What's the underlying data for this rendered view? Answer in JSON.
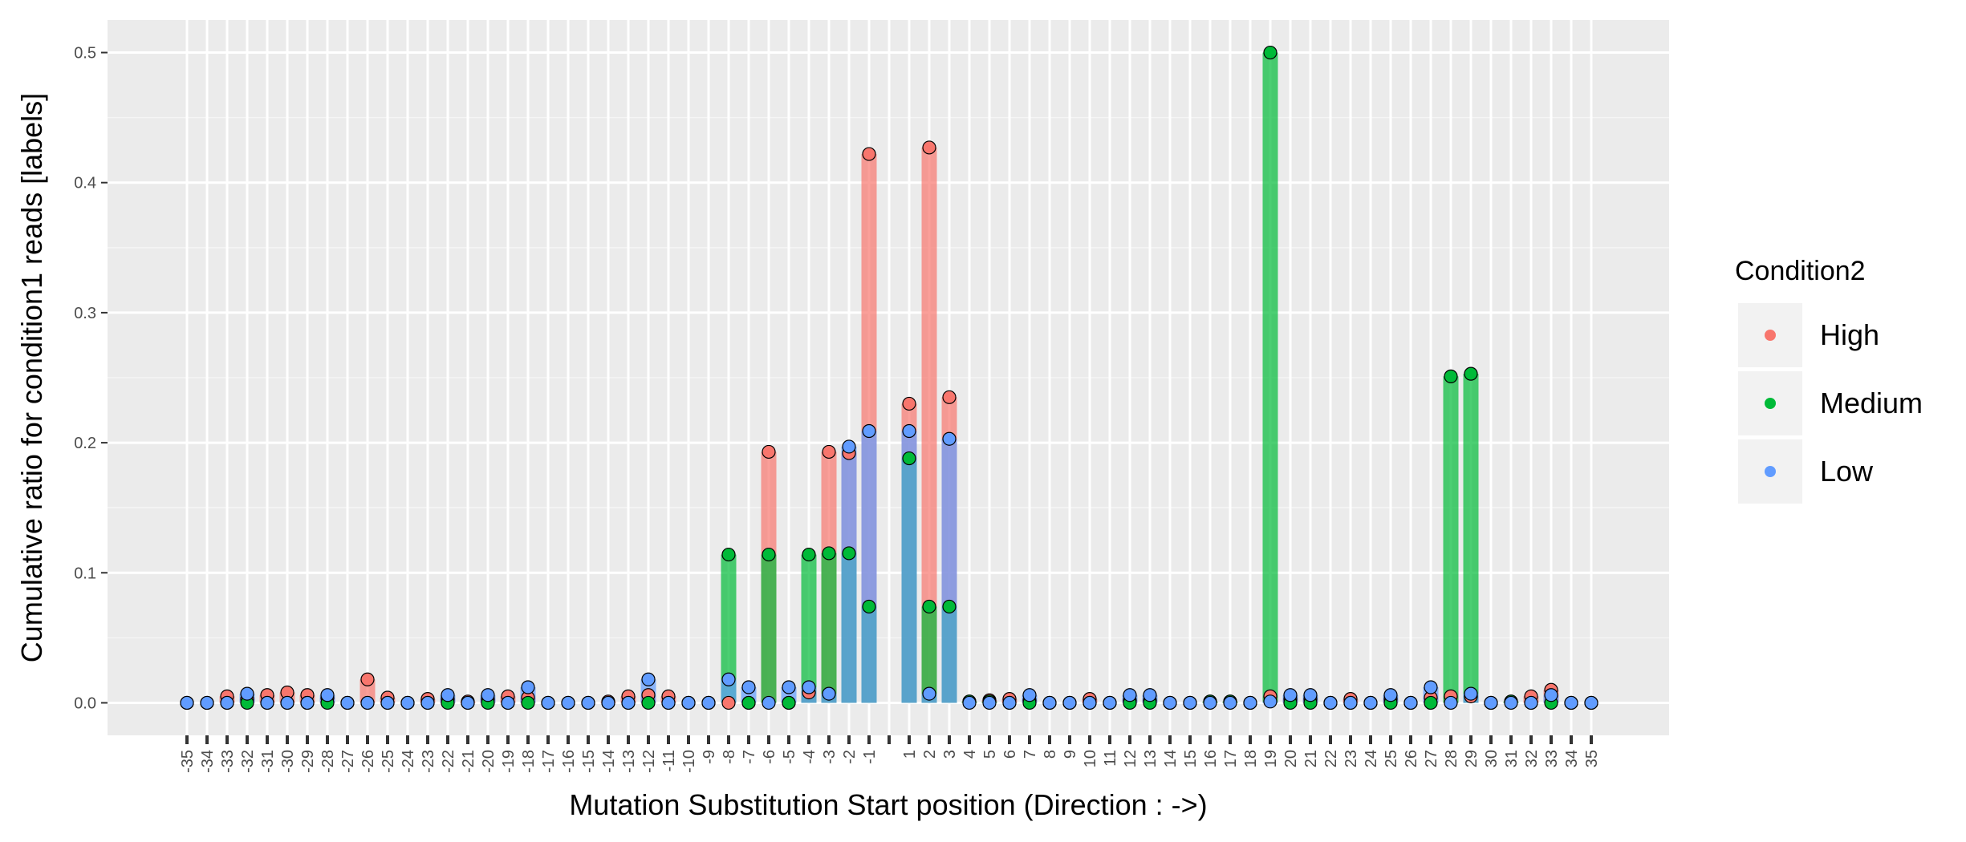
{
  "chart_data": {
    "type": "bar",
    "title": "",
    "xlabel": "Mutation Substitution Start position (Direction : ->)",
    "ylabel": "Cumulative ratio for condition1 reads [labels]",
    "ylim": [
      -0.025,
      0.525
    ],
    "yticks": [
      "0.0",
      "0.1",
      "0.2",
      "0.3",
      "0.4",
      "0.5"
    ],
    "grid": true,
    "legend": {
      "title": "Condition2",
      "placement": "right"
    },
    "categories": [
      "-35",
      "-34",
      "-33",
      "-32",
      "-31",
      "-30",
      "-29",
      "-28",
      "-27",
      "-26",
      "-25",
      "-24",
      "-23",
      "-22",
      "-21",
      "-20",
      "-19",
      "-18",
      "-17",
      "-16",
      "-15",
      "-14",
      "-13",
      "-12",
      "-11",
      "-10",
      "-9",
      "-8",
      "-7",
      "-6",
      "-5",
      "-4",
      "-3",
      "-2",
      "-1",
      "",
      "1",
      "2",
      "3",
      "4",
      "5",
      "6",
      "7",
      "8",
      "9",
      "10",
      "11",
      "12",
      "13",
      "14",
      "15",
      "16",
      "17",
      "18",
      "19",
      "20",
      "21",
      "22",
      "23",
      "24",
      "25",
      "26",
      "27",
      "28",
      "29",
      "30",
      "31",
      "32",
      "33",
      "34",
      "35"
    ],
    "series": [
      {
        "name": "High",
        "color": "#F8766D",
        "values": [
          0,
          0,
          0.005,
          0.003,
          0.006,
          0.008,
          0.006,
          0.004,
          0,
          0.018,
          0.004,
          0,
          0.003,
          0.003,
          0.001,
          0.003,
          0.005,
          0.004,
          0,
          0,
          0,
          0.001,
          0.005,
          0.006,
          0.005,
          0,
          0,
          0,
          0,
          0.193,
          0,
          0.008,
          0.193,
          0.192,
          0.422,
          null,
          0.23,
          0.427,
          0.235,
          0.001,
          0.002,
          0.003,
          0.002,
          0,
          0,
          0.003,
          0,
          0.002,
          0.002,
          0,
          0,
          0.001,
          0.001,
          0,
          0.005,
          0.003,
          0.003,
          0,
          0.003,
          0,
          0.003,
          0,
          0.004,
          0.005,
          0.005,
          0,
          0.001,
          0.005,
          0.01,
          0,
          0
        ]
      },
      {
        "name": "Medium",
        "color": "#00BA38",
        "values": [
          0,
          0,
          0,
          0,
          0,
          0,
          0,
          0,
          0,
          0,
          0,
          0,
          0,
          0,
          0,
          0,
          0,
          0,
          0,
          0,
          0,
          0,
          0,
          0,
          0,
          0,
          0,
          0.114,
          0,
          0.114,
          0,
          0.114,
          0.115,
          0.115,
          0.074,
          null,
          0.188,
          0.074,
          0.074,
          0.001,
          0.001,
          0,
          0,
          0,
          0,
          0,
          0,
          0,
          0,
          0,
          0,
          0.001,
          0.001,
          0,
          0.5,
          0,
          0,
          0,
          0,
          0,
          0,
          0,
          0,
          0.251,
          0.253,
          0,
          0.001,
          0,
          0,
          0,
          0
        ]
      },
      {
        "name": "Low",
        "color": "#619CFF",
        "values": [
          0,
          0,
          0,
          0.007,
          0,
          0,
          0,
          0.006,
          0,
          0,
          0,
          0,
          0,
          0.006,
          0,
          0.006,
          0,
          0.012,
          0,
          0,
          0,
          0,
          0,
          0.018,
          0,
          0,
          0,
          0.018,
          0.012,
          0,
          0.012,
          0.012,
          0.007,
          0.197,
          0.209,
          null,
          0.209,
          0.007,
          0.203,
          0,
          0,
          0,
          0.006,
          0,
          0,
          0,
          0,
          0.006,
          0.006,
          0,
          0,
          0,
          0,
          0,
          0.001,
          0.006,
          0.006,
          0,
          0,
          0,
          0.006,
          0,
          0.012,
          0,
          0.007,
          0,
          0,
          0,
          0.006,
          0,
          0
        ]
      }
    ]
  }
}
